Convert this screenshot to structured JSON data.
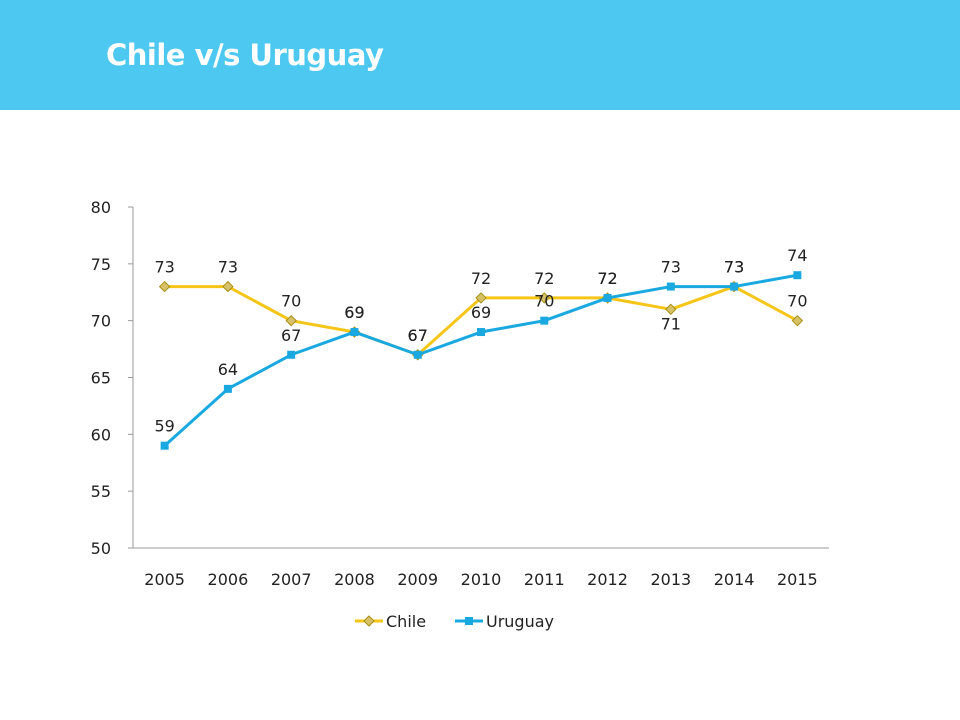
{
  "slide": {
    "title": "Chile v/s Uruguay",
    "header_color": "#4DC8F0"
  },
  "chart_data": {
    "type": "line",
    "title": "",
    "xlabel": "",
    "ylabel": "",
    "categories": [
      "2005",
      "2006",
      "2007",
      "2008",
      "2009",
      "2010",
      "2011",
      "2012",
      "2013",
      "2014",
      "2015"
    ],
    "ylim": [
      50,
      80
    ],
    "yticks": [
      50,
      55,
      60,
      65,
      70,
      75,
      80
    ],
    "grid": false,
    "legend_position": "bottom",
    "series": [
      {
        "name": "Chile",
        "values": [
          73,
          73,
          70,
          69,
          67,
          72,
          72,
          72,
          71,
          73,
          70
        ],
        "color": "#F5C518",
        "marker": "diamond",
        "label_position": [
          "above",
          "above",
          "above",
          "above",
          "above",
          "above",
          "above",
          "above",
          "below",
          "above",
          "above"
        ]
      },
      {
        "name": "Uruguay",
        "values": [
          59,
          64,
          67,
          69,
          67,
          69,
          70,
          72,
          73,
          73,
          74
        ],
        "color": "#19A9E0",
        "marker": "square",
        "label_position": [
          "above",
          "above",
          "above",
          "above",
          "above",
          "above",
          "above",
          "above",
          "above",
          "above",
          "above"
        ]
      }
    ]
  }
}
